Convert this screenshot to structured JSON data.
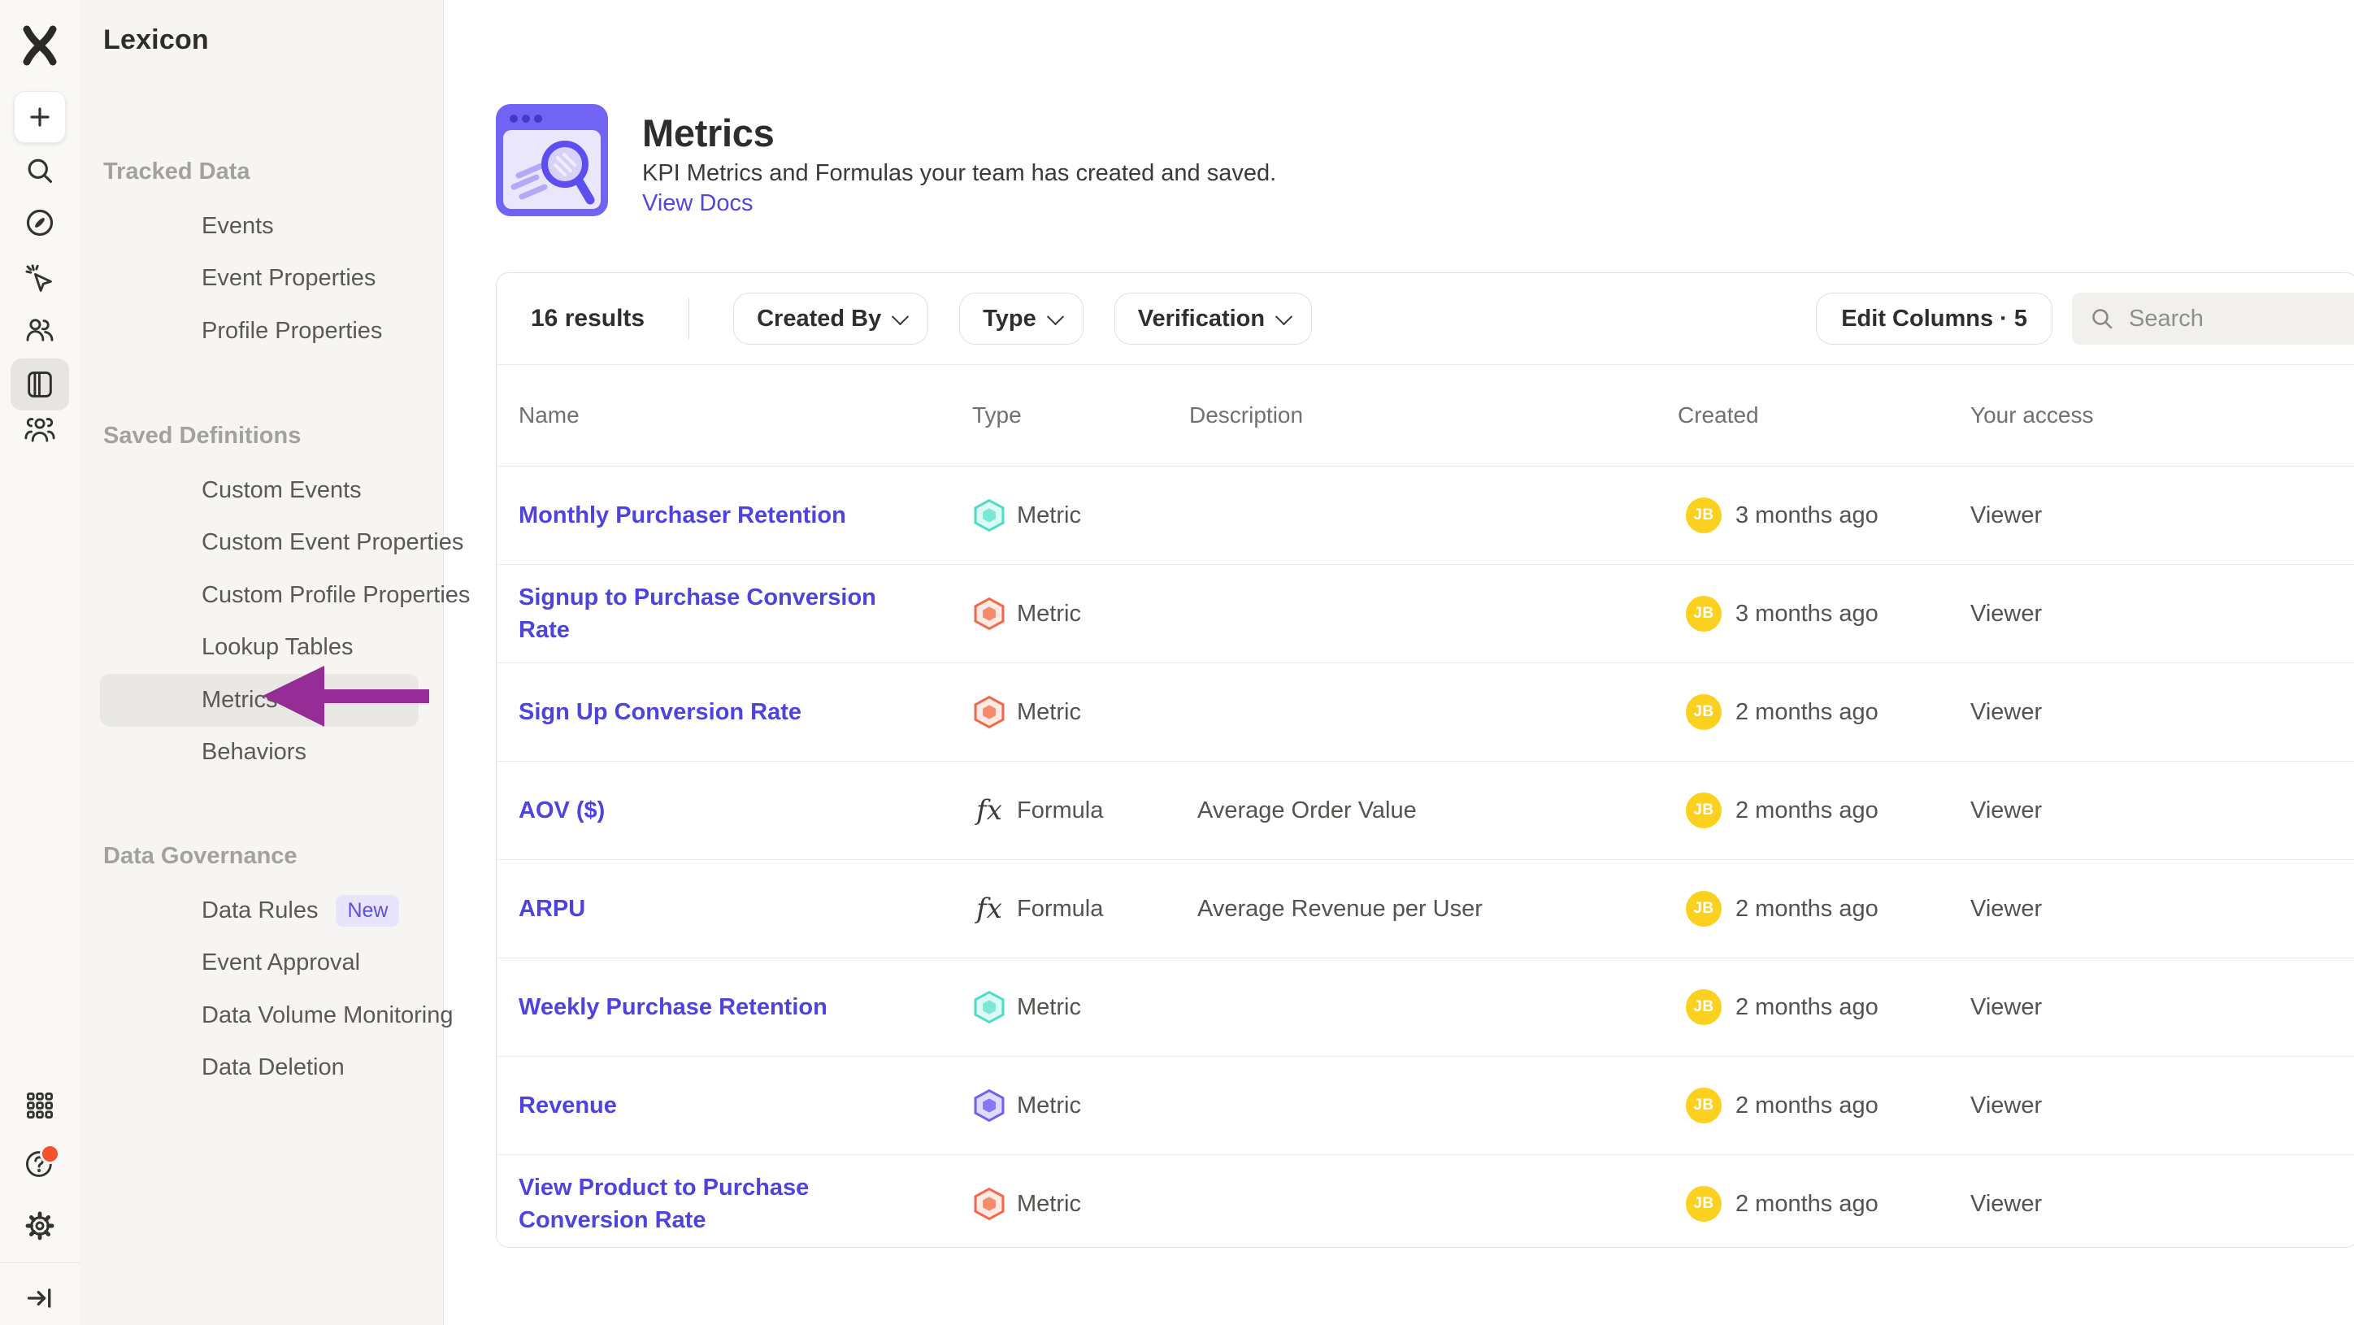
{
  "app": {
    "title": "Lexicon"
  },
  "rail": {
    "icons_top": [
      "mixpanel-logo",
      "plus",
      "search",
      "compass",
      "click-cursor",
      "users",
      "lexicon-book-selected",
      "team"
    ],
    "icons_bottom": [
      "apps-grid",
      "help-with-notification",
      "settings-gear",
      "collapse-sign-out"
    ]
  },
  "sidebar": {
    "sections": [
      {
        "title": "Tracked Data",
        "items": [
          {
            "label": "Events"
          },
          {
            "label": "Event Properties"
          },
          {
            "label": "Profile Properties"
          }
        ]
      },
      {
        "title": "Saved Definitions",
        "items": [
          {
            "label": "Custom Events"
          },
          {
            "label": "Custom Event Properties"
          },
          {
            "label": "Custom Profile Properties"
          },
          {
            "label": "Lookup Tables"
          },
          {
            "label": "Metrics",
            "active": true
          },
          {
            "label": "Behaviors"
          }
        ]
      },
      {
        "title": "Data Governance",
        "items": [
          {
            "label": "Data Rules",
            "badge": "New"
          },
          {
            "label": "Event Approval"
          },
          {
            "label": "Data Volume Monitoring"
          },
          {
            "label": "Data Deletion"
          }
        ]
      }
    ]
  },
  "annotation": {
    "type": "arrow-pointing-left-at-metrics",
    "color": "#962d96"
  },
  "header": {
    "title": "Metrics",
    "subtitle": "KPI Metrics and Formulas your team has created and saved.",
    "link": "View Docs"
  },
  "toolbar": {
    "results": "16 results",
    "filters": [
      {
        "label": "Created By"
      },
      {
        "label": "Type"
      },
      {
        "label": "Verification"
      }
    ],
    "edit_columns": "Edit Columns · 5",
    "search_placeholder": "Search"
  },
  "table": {
    "columns": [
      "Name",
      "Type",
      "Description",
      "Created",
      "Your access"
    ],
    "rows": [
      {
        "name": "Monthly Purchaser Retention",
        "type": "Metric",
        "icon": "teal",
        "description": "",
        "avatar": "JB",
        "created": "3 months ago",
        "access": "Viewer"
      },
      {
        "name": "Signup to Purchase Conversion Rate",
        "type": "Metric",
        "icon": "orange",
        "description": "",
        "avatar": "JB",
        "created": "3 months ago",
        "access": "Viewer"
      },
      {
        "name": "Sign Up Conversion Rate",
        "type": "Metric",
        "icon": "orange",
        "description": "",
        "avatar": "JB",
        "created": "2 months ago",
        "access": "Viewer"
      },
      {
        "name": "AOV ($)",
        "type": "Formula",
        "icon": "formula",
        "description": "Average Order Value",
        "avatar": "JB",
        "created": "2 months ago",
        "access": "Viewer"
      },
      {
        "name": "ARPU",
        "type": "Formula",
        "icon": "formula",
        "description": "Average Revenue per User",
        "avatar": "JB",
        "created": "2 months ago",
        "access": "Viewer"
      },
      {
        "name": "Weekly Purchase Retention",
        "type": "Metric",
        "icon": "teal",
        "description": "",
        "avatar": "JB",
        "created": "2 months ago",
        "access": "Viewer"
      },
      {
        "name": "Revenue",
        "type": "Metric",
        "icon": "purple",
        "description": "",
        "avatar": "JB",
        "created": "2 months ago",
        "access": "Viewer"
      },
      {
        "name": "View Product to Purchase Conversion Rate",
        "type": "Metric",
        "icon": "orange",
        "description": "",
        "avatar": "JB",
        "created": "2 months ago",
        "access": "Viewer"
      }
    ]
  },
  "colors": {
    "accent_link": "#4f43e0",
    "avatar_bg": "#fcd01f",
    "annotation_arrow": "#962d96",
    "metric_teal": "#4fdcc5",
    "metric_orange": "#f2684c",
    "metric_purple": "#7161f2",
    "badge_new_bg": "#e8e4fb",
    "badge_new_text": "#5a4fe0"
  }
}
